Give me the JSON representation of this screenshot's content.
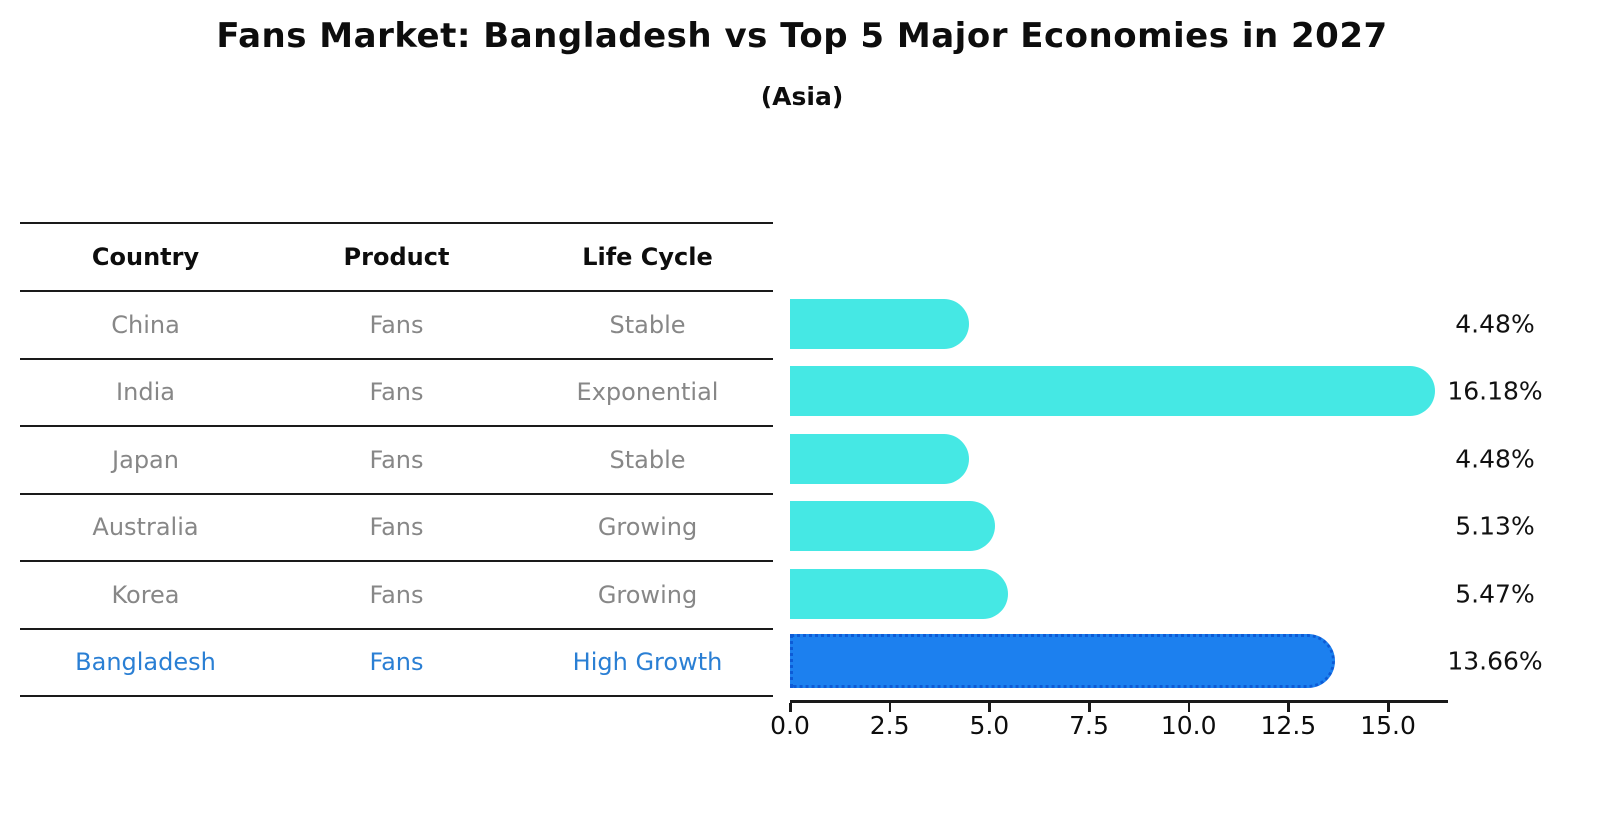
{
  "chart": {
    "title": "Fans Market: Bangladesh vs Top 5 Major Economies in 2027",
    "subtitle": "(Asia)"
  },
  "table": {
    "headers": [
      "Country",
      "Product",
      "Life Cycle"
    ],
    "rows": [
      {
        "country": "China",
        "product": "Fans",
        "life_cycle": "Stable",
        "highlight": false
      },
      {
        "country": "India",
        "product": "Fans",
        "life_cycle": "Exponential",
        "highlight": false
      },
      {
        "country": "Japan",
        "product": "Fans",
        "life_cycle": "Stable",
        "highlight": false
      },
      {
        "country": "Australia",
        "product": "Fans",
        "life_cycle": "Growing",
        "highlight": false
      },
      {
        "country": "Korea",
        "product": "Fans",
        "life_cycle": "Growing",
        "highlight": false
      },
      {
        "country": "Bangladesh",
        "product": "Fans",
        "life_cycle": "High Growth",
        "highlight": true
      }
    ]
  },
  "chart_data": {
    "type": "bar",
    "orientation": "horizontal",
    "title": "Fans Market: Bangladesh vs Top 5 Major Economies in 2027",
    "subtitle": "(Asia)",
    "categories": [
      "China",
      "India",
      "Japan",
      "Australia",
      "Korea",
      "Bangladesh"
    ],
    "values": [
      4.48,
      16.18,
      4.48,
      5.13,
      5.47,
      13.66
    ],
    "labels": [
      "4.48%",
      "16.18%",
      "4.48%",
      "5.13%",
      "5.47%",
      "13.66%"
    ],
    "xlabel": "",
    "ylabel": "",
    "xlim": [
      0,
      16.5
    ],
    "x_ticks": [
      "0.0",
      "2.5",
      "5.0",
      "7.5",
      "10.0",
      "12.5",
      "15.0"
    ],
    "grid": false,
    "legend": "none",
    "bar_color": "#45E8E4",
    "highlight_color": "#1C80EF",
    "highlight_index": 5
  },
  "colors": {
    "bar_cyan": "#45E8E4",
    "bar_blue": "#1C80EF",
    "highlight_text": "#2A7FD4",
    "cell_text": "#878787",
    "header_text": "#0D0D0D",
    "line": "#1A1A1A"
  }
}
